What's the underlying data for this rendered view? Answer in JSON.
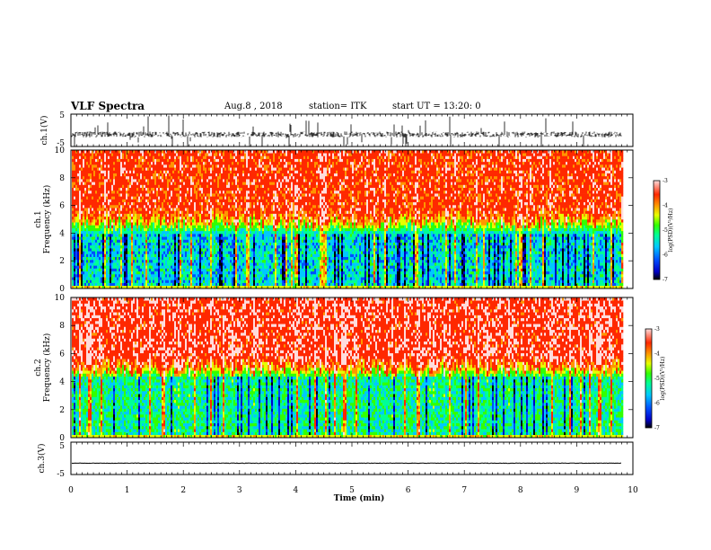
{
  "header": {
    "title": "VLF Spectra",
    "date": "Aug.8 , 2018",
    "station": "station= ITK",
    "start": "start UT = 13:20: 0"
  },
  "chart_data": [
    {
      "type": "line",
      "panel": "ch1-waveform",
      "ylabel": "ch.1(V)",
      "ylim": [
        -5,
        5
      ],
      "yticks": [
        "5",
        "-5"
      ],
      "xlim": [
        0,
        10
      ],
      "baseline": -1.3,
      "noise": "dense bursts reaching ±5"
    },
    {
      "type": "heatmap",
      "panel": "ch1-spectrogram",
      "ylabel": "ch.1\nFrequency (kHz)",
      "ylim": [
        0,
        10
      ],
      "yticks": [
        "0",
        "2",
        "4",
        "6",
        "8",
        "10"
      ],
      "xlim": [
        0,
        10
      ],
      "data_end_min": 9.8,
      "colorbar": {
        "label": "log(PSD)(V²/Hz)",
        "range": [
          -7,
          -3
        ],
        "ticks": [
          "-3",
          "-4",
          "-5",
          "-6",
          "-7"
        ]
      },
      "structure": {
        "low_band_kHz": [
          0.3,
          4
        ],
        "low_band_log_psd": -5.5,
        "high_band_kHz": [
          6,
          10
        ],
        "high_band_log_psd": -3.5
      }
    },
    {
      "type": "heatmap",
      "panel": "ch2-spectrogram",
      "ylabel": "ch.2\nFrequency (kHz)",
      "ylim": [
        0,
        10
      ],
      "yticks": [
        "0",
        "2",
        "4",
        "6",
        "8",
        "10"
      ],
      "xlim": [
        0,
        10
      ],
      "data_end_min": 9.8,
      "colorbar": {
        "label": "log(PSD)(V²/Hz)",
        "range": [
          -7,
          -3
        ],
        "ticks": [
          "-3",
          "-4",
          "-5",
          "-6",
          "-7"
        ]
      },
      "structure": {
        "low_band_kHz": [
          0.3,
          4.3
        ],
        "low_band_log_psd": -5.2,
        "high_band_kHz": [
          6,
          10
        ],
        "high_band_log_psd": -3.4
      }
    },
    {
      "type": "line",
      "panel": "ch3-waveform",
      "ylabel": "ch.3(V)",
      "ylim": [
        -5,
        5
      ],
      "yticks": [
        "5",
        "-5"
      ],
      "xlim": [
        0,
        10
      ],
      "baseline": -1.5
    }
  ],
  "xaxis": {
    "label": "Time (min)",
    "ticks": [
      "0",
      "1",
      "2",
      "3",
      "4",
      "5",
      "6",
      "7",
      "8",
      "9",
      "10"
    ]
  },
  "colors": {
    "background": "#ffffff",
    "axis": "#000000",
    "colormap": [
      "#000000",
      "#0000c8",
      "#0050ff",
      "#00c8ff",
      "#00ff96",
      "#32ff00",
      "#e6ff00",
      "#ff9600",
      "#ff2800",
      "#ffdcdc"
    ]
  }
}
